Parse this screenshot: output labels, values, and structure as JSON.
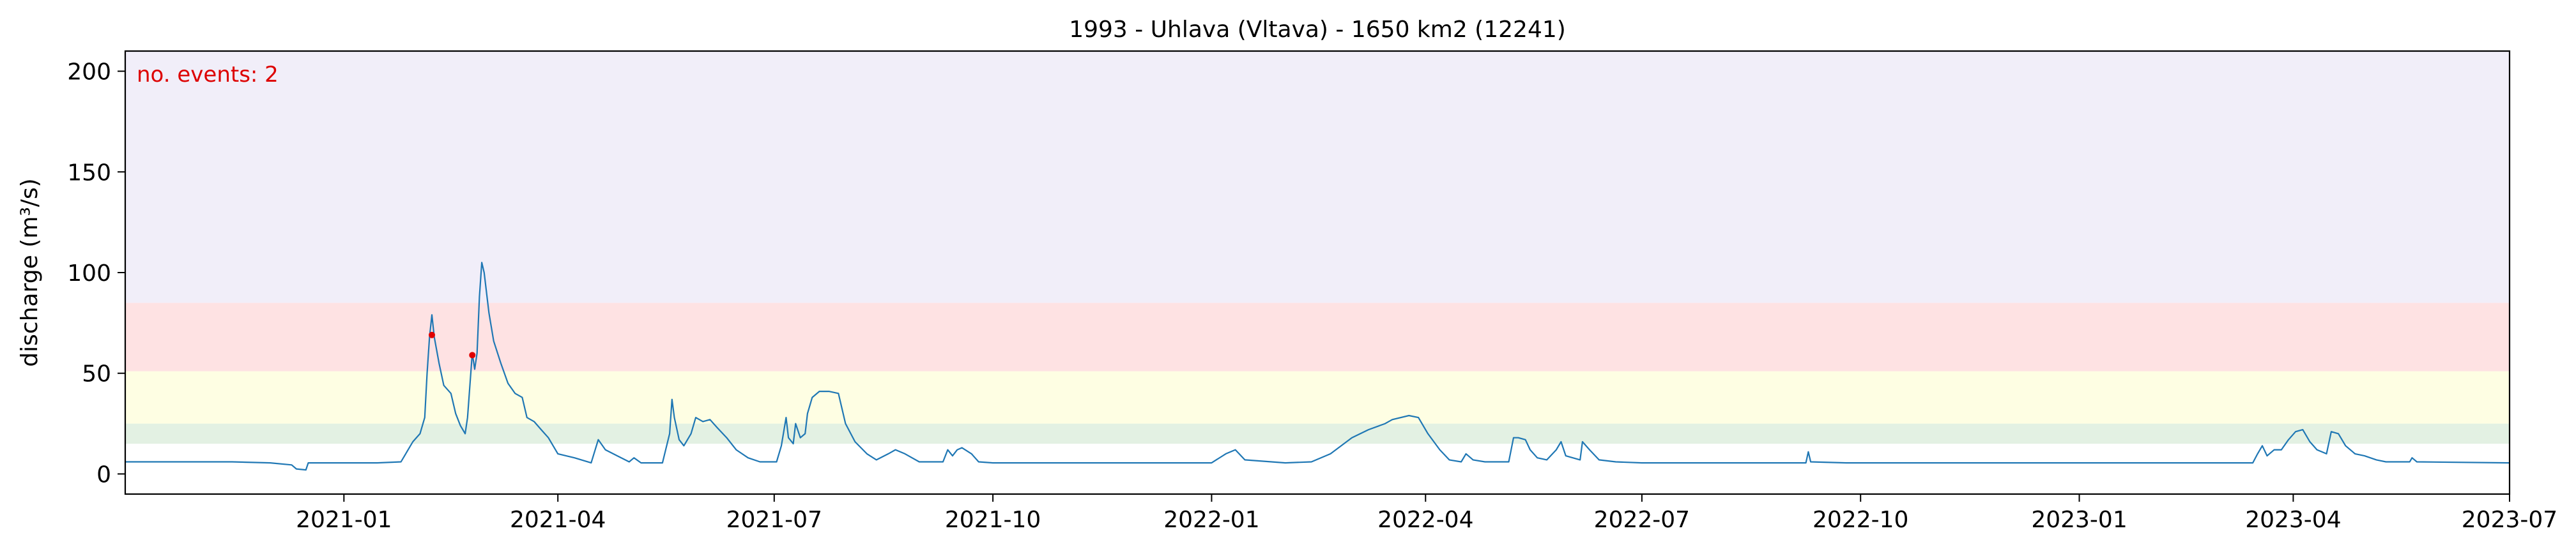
{
  "chart_data": {
    "type": "line",
    "title": "1993 - Uhlava (Vltava) - 1650 km2 (12241)",
    "xlabel": "",
    "ylabel": "discharge (m³/s)",
    "xlim": [
      "2020-10-01",
      "2023-07-01"
    ],
    "ylim": [
      -10,
      210
    ],
    "grid": false,
    "x_ticks": [
      "2021-01",
      "2021-04",
      "2021-07",
      "2021-10",
      "2022-01",
      "2022-04",
      "2022-07",
      "2022-10",
      "2023-01",
      "2023-04",
      "2023-07"
    ],
    "y_ticks": [
      0,
      50,
      100,
      150,
      200
    ],
    "annotation": {
      "text": "no. events: 2",
      "color": "#dd0000"
    },
    "threshold_bands": [
      {
        "from": 15,
        "to": 25,
        "color": "#e3f1e3"
      },
      {
        "from": 25,
        "to": 51,
        "color": "#fefee3"
      },
      {
        "from": 51,
        "to": 85,
        "color": "#fee2e3"
      },
      {
        "from": 85,
        "to": 210,
        "color": "#f1eef9"
      }
    ],
    "series": [
      {
        "color": "#1f77b4",
        "points": [
          [
            "2020-10-01",
            6
          ],
          [
            "2020-11-15",
            6
          ],
          [
            "2020-12-01",
            5.5
          ],
          [
            "2020-12-10",
            4.5
          ],
          [
            "2020-12-12",
            2.5
          ],
          [
            "2020-12-16",
            2
          ],
          [
            "2020-12-17",
            5.5
          ],
          [
            "2021-01-15",
            5.5
          ],
          [
            "2021-01-25",
            6
          ],
          [
            "2021-01-30",
            16
          ],
          [
            "2021-02-02",
            20
          ],
          [
            "2021-02-04",
            28
          ],
          [
            "2021-02-05",
            50
          ],
          [
            "2021-02-06",
            68
          ],
          [
            "2021-02-07",
            79
          ],
          [
            "2021-02-08",
            68
          ],
          [
            "2021-02-10",
            55
          ],
          [
            "2021-02-12",
            44
          ],
          [
            "2021-02-15",
            40
          ],
          [
            "2021-02-17",
            30
          ],
          [
            "2021-02-19",
            24
          ],
          [
            "2021-02-21",
            20
          ],
          [
            "2021-02-22",
            28
          ],
          [
            "2021-02-24",
            60
          ],
          [
            "2021-02-25",
            52
          ],
          [
            "2021-02-26",
            60
          ],
          [
            "2021-02-27",
            88
          ],
          [
            "2021-02-28",
            105
          ],
          [
            "2021-03-01",
            100
          ],
          [
            "2021-03-03",
            80
          ],
          [
            "2021-03-05",
            66
          ],
          [
            "2021-03-08",
            55
          ],
          [
            "2021-03-11",
            45
          ],
          [
            "2021-03-14",
            40
          ],
          [
            "2021-03-17",
            38
          ],
          [
            "2021-03-19",
            28
          ],
          [
            "2021-03-22",
            26
          ],
          [
            "2021-03-25",
            22
          ],
          [
            "2021-03-28",
            18
          ],
          [
            "2021-04-01",
            10
          ],
          [
            "2021-04-08",
            8
          ],
          [
            "2021-04-15",
            5.5
          ],
          [
            "2021-04-18",
            17
          ],
          [
            "2021-04-21",
            12
          ],
          [
            "2021-04-26",
            9
          ],
          [
            "2021-05-01",
            6
          ],
          [
            "2021-05-03",
            8
          ],
          [
            "2021-05-06",
            5.5
          ],
          [
            "2021-05-15",
            5.5
          ],
          [
            "2021-05-18",
            20
          ],
          [
            "2021-05-19",
            37
          ],
          [
            "2021-05-20",
            28
          ],
          [
            "2021-05-22",
            17
          ],
          [
            "2021-05-24",
            14
          ],
          [
            "2021-05-27",
            20
          ],
          [
            "2021-05-29",
            28
          ],
          [
            "2021-06-01",
            26
          ],
          [
            "2021-06-04",
            27
          ],
          [
            "2021-06-07",
            23
          ],
          [
            "2021-06-11",
            18
          ],
          [
            "2021-06-15",
            12
          ],
          [
            "2021-06-20",
            8
          ],
          [
            "2021-06-25",
            6
          ],
          [
            "2021-07-02",
            6
          ],
          [
            "2021-07-04",
            14
          ],
          [
            "2021-07-06",
            28
          ],
          [
            "2021-07-07",
            18
          ],
          [
            "2021-07-09",
            15
          ],
          [
            "2021-07-10",
            25
          ],
          [
            "2021-07-12",
            18
          ],
          [
            "2021-07-14",
            20
          ],
          [
            "2021-07-15",
            30
          ],
          [
            "2021-07-17",
            38
          ],
          [
            "2021-07-20",
            41
          ],
          [
            "2021-07-24",
            41
          ],
          [
            "2021-07-28",
            40
          ],
          [
            "2021-07-31",
            25
          ],
          [
            "2021-08-04",
            16
          ],
          [
            "2021-08-09",
            10
          ],
          [
            "2021-08-13",
            7
          ],
          [
            "2021-08-18",
            10
          ],
          [
            "2021-08-21",
            12
          ],
          [
            "2021-08-25",
            10
          ],
          [
            "2021-08-31",
            6
          ],
          [
            "2021-09-05",
            6
          ],
          [
            "2021-09-10",
            6
          ],
          [
            "2021-09-12",
            12
          ],
          [
            "2021-09-14",
            9
          ],
          [
            "2021-09-16",
            12
          ],
          [
            "2021-09-18",
            13
          ],
          [
            "2021-09-22",
            10
          ],
          [
            "2021-09-25",
            6
          ],
          [
            "2021-10-01",
            5.5
          ],
          [
            "2022-01-01",
            5.5
          ],
          [
            "2022-01-07",
            10
          ],
          [
            "2022-01-11",
            12
          ],
          [
            "2022-01-15",
            7
          ],
          [
            "2022-02-01",
            5.5
          ],
          [
            "2022-02-12",
            6
          ],
          [
            "2022-02-20",
            10
          ],
          [
            "2022-03-01",
            18
          ],
          [
            "2022-03-08",
            22
          ],
          [
            "2022-03-15",
            25
          ],
          [
            "2022-03-18",
            27
          ],
          [
            "2022-03-25",
            29
          ],
          [
            "2022-03-29",
            28
          ],
          [
            "2022-04-02",
            20
          ],
          [
            "2022-04-07",
            12
          ],
          [
            "2022-04-11",
            7
          ],
          [
            "2022-04-16",
            6
          ],
          [
            "2022-04-18",
            10
          ],
          [
            "2022-04-21",
            7
          ],
          [
            "2022-04-26",
            6
          ],
          [
            "2022-05-06",
            6
          ],
          [
            "2022-05-08",
            18
          ],
          [
            "2022-05-10",
            18
          ],
          [
            "2022-05-13",
            17
          ],
          [
            "2022-05-15",
            12
          ],
          [
            "2022-05-18",
            8
          ],
          [
            "2022-05-22",
            7
          ],
          [
            "2022-05-26",
            12
          ],
          [
            "2022-05-28",
            16
          ],
          [
            "2022-05-30",
            9
          ],
          [
            "2022-06-05",
            7
          ],
          [
            "2022-06-06",
            16
          ],
          [
            "2022-06-09",
            12
          ],
          [
            "2022-06-13",
            7
          ],
          [
            "2022-06-20",
            6
          ],
          [
            "2022-07-01",
            5.5
          ],
          [
            "2022-09-08",
            5.5
          ],
          [
            "2022-09-09",
            11
          ],
          [
            "2022-09-10",
            6
          ],
          [
            "2022-09-25",
            5.5
          ],
          [
            "2022-10-01",
            5.5
          ],
          [
            "2023-03-15",
            5.5
          ],
          [
            "2023-03-17",
            10
          ],
          [
            "2023-03-19",
            14
          ],
          [
            "2023-03-21",
            9
          ],
          [
            "2023-03-24",
            12
          ],
          [
            "2023-03-27",
            12
          ],
          [
            "2023-03-30",
            17
          ],
          [
            "2023-04-02",
            21
          ],
          [
            "2023-04-05",
            22
          ],
          [
            "2023-04-08",
            16
          ],
          [
            "2023-04-11",
            12
          ],
          [
            "2023-04-13",
            11
          ],
          [
            "2023-04-15",
            10
          ],
          [
            "2023-04-17",
            21
          ],
          [
            "2023-04-20",
            20
          ],
          [
            "2023-04-23",
            14
          ],
          [
            "2023-04-27",
            10
          ],
          [
            "2023-05-01",
            9
          ],
          [
            "2023-05-06",
            7
          ],
          [
            "2023-05-10",
            6
          ],
          [
            "2023-05-20",
            6
          ],
          [
            "2023-05-21",
            8
          ],
          [
            "2023-05-23",
            6
          ],
          [
            "2023-07-01",
            5.5
          ]
        ]
      }
    ],
    "events": [
      {
        "x": "2021-02-07",
        "y": 69,
        "color": "#e00000"
      },
      {
        "x": "2021-02-24",
        "y": 59,
        "color": "#e00000"
      }
    ]
  }
}
